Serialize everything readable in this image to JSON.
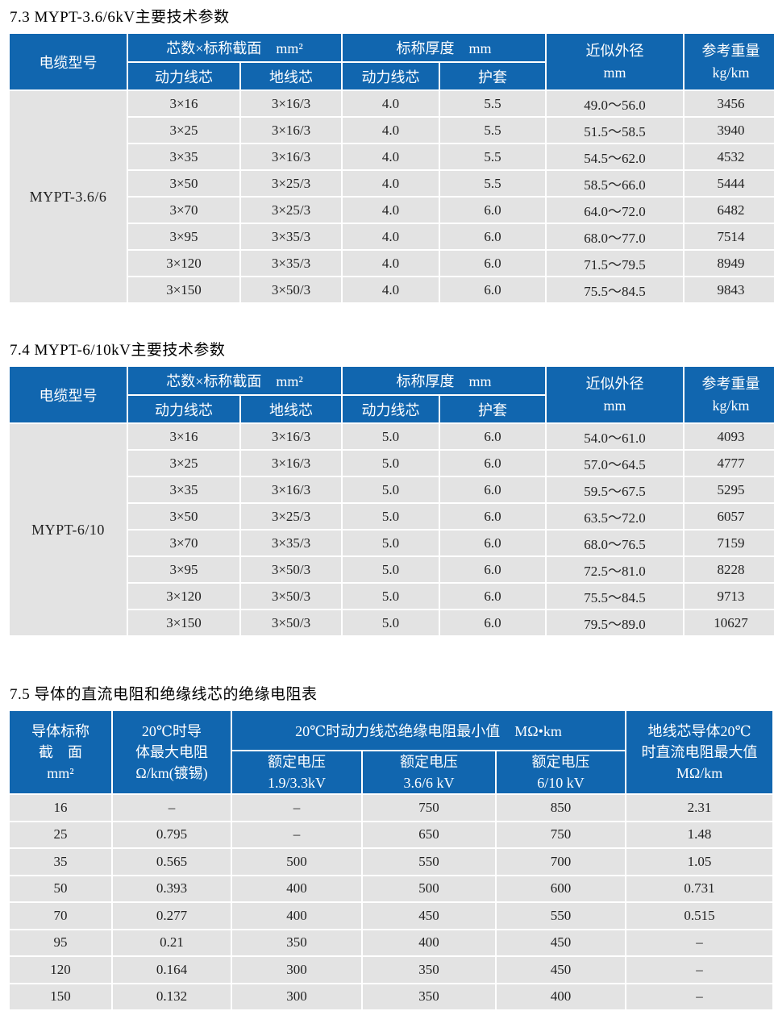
{
  "colors": {
    "header_blue": "#1166af",
    "row_gray": "#e3e3e3"
  },
  "section_36": {
    "title": "7.3 MYPT-3.6/6kV主要技术参数",
    "model": "MYPT-3.6/6",
    "header": {
      "cable_model": "电缆型号",
      "cores_group": "芯数×标称截面　mm²",
      "core_power": "动力线芯",
      "core_ground": "地线芯",
      "thickness_group": "标称厚度　mm",
      "thickness_power": "动力线芯",
      "thickness_sheath": "护套",
      "outer_diameter": [
        "近似外径",
        "mm"
      ],
      "weight": [
        "参考重量",
        "kg/km"
      ]
    },
    "rows": [
      [
        "3×16",
        "3×16/3",
        "4.0",
        "5.5",
        "49.0～56.0",
        "3456"
      ],
      [
        "3×25",
        "3×16/3",
        "4.0",
        "5.5",
        "51.5～58.5",
        "3940"
      ],
      [
        "3×35",
        "3×16/3",
        "4.0",
        "5.5",
        "54.5～62.0",
        "4532"
      ],
      [
        "3×50",
        "3×25/3",
        "4.0",
        "5.5",
        "58.5～66.0",
        "5444"
      ],
      [
        "3×70",
        "3×25/3",
        "4.0",
        "6.0",
        "64.0～72.0",
        "6482"
      ],
      [
        "3×95",
        "3×35/3",
        "4.0",
        "6.0",
        "68.0～77.0",
        "7514"
      ],
      [
        "3×120",
        "3×35/3",
        "4.0",
        "6.0",
        "71.5～79.5",
        "8949"
      ],
      [
        "3×150",
        "3×50/3",
        "4.0",
        "6.0",
        "75.5～84.5",
        "9843"
      ]
    ]
  },
  "section_610": {
    "title": "7.4 MYPT-6/10kV主要技术参数",
    "model": "MYPT-6/10",
    "header": {
      "cable_model": "电缆型号",
      "cores_group": "芯数×标称截面　mm²",
      "core_power": "动力线芯",
      "core_ground": "地线芯",
      "thickness_group": "标称厚度　mm",
      "thickness_power": "动力线芯",
      "thickness_sheath": "护套",
      "outer_diameter": [
        "近似外径",
        "mm"
      ],
      "weight": [
        "参考重量",
        "kg/km"
      ]
    },
    "rows": [
      [
        "3×16",
        "3×16/3",
        "5.0",
        "6.0",
        "54.0～61.0",
        "4093"
      ],
      [
        "3×25",
        "3×16/3",
        "5.0",
        "6.0",
        "57.0～64.5",
        "4777"
      ],
      [
        "3×35",
        "3×16/3",
        "5.0",
        "6.0",
        "59.5～67.5",
        "5295"
      ],
      [
        "3×50",
        "3×25/3",
        "5.0",
        "6.0",
        "63.5～72.0",
        "6057"
      ],
      [
        "3×70",
        "3×35/3",
        "5.0",
        "6.0",
        "68.0～76.5",
        "7159"
      ],
      [
        "3×95",
        "3×50/3",
        "5.0",
        "6.0",
        "72.5～81.0",
        "8228"
      ],
      [
        "3×120",
        "3×50/3",
        "5.0",
        "6.0",
        "75.5～84.5",
        "9713"
      ],
      [
        "3×150",
        "3×50/3",
        "5.0",
        "6.0",
        "79.5～89.0",
        "10627"
      ]
    ]
  },
  "section_resistance": {
    "title": "7.5 导体的直流电阻和绝缘线芯的绝缘电阻表",
    "header": {
      "conductor_section": [
        "导体标称",
        "截　面",
        "mm²"
      ],
      "max_resistance": [
        "20℃时导",
        "体最大电阻",
        "Ω/km(镀锡)"
      ],
      "insulation_group": "20℃时动力线芯绝缘电阻最小值　MΩ•km",
      "voltage_1933": [
        "额定电压",
        "1.9/3.3kV"
      ],
      "voltage_366": [
        "额定电压",
        "3.6/6 kV"
      ],
      "voltage_610": [
        "额定电压",
        "6/10 kV"
      ],
      "ground_resistance": [
        "地线芯导体20℃",
        "时直流电阻最大值",
        "MΩ/km"
      ]
    },
    "rows": [
      [
        "16",
        "–",
        "–",
        "750",
        "850",
        "2.31"
      ],
      [
        "25",
        "0.795",
        "–",
        "650",
        "750",
        "1.48"
      ],
      [
        "35",
        "0.565",
        "500",
        "550",
        "700",
        "1.05"
      ],
      [
        "50",
        "0.393",
        "400",
        "500",
        "600",
        "0.731"
      ],
      [
        "70",
        "0.277",
        "400",
        "450",
        "550",
        "0.515"
      ],
      [
        "95",
        "0.21",
        "350",
        "400",
        "450",
        "–"
      ],
      [
        "120",
        "0.164",
        "300",
        "350",
        "450",
        "–"
      ],
      [
        "150",
        "0.132",
        "300",
        "350",
        "400",
        "–"
      ]
    ]
  }
}
